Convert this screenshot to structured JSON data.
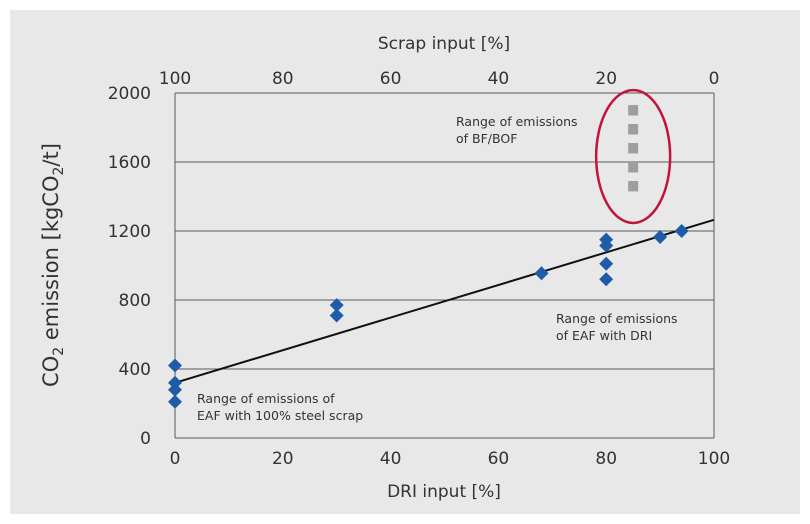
{
  "chart_data": {
    "type": "scatter",
    "top_xlabel": "Scrap input [%]",
    "xlabel": "DRI input [%]",
    "ylabel": "CO2 emission [kgCO2/t]",
    "ylabel_parts": {
      "pre": "CO",
      "sub1": "2",
      "mid": " emission [kgCO",
      "sub2": "2",
      "post": "/t]"
    },
    "xlim": [
      0,
      100
    ],
    "ylim": [
      0,
      2000
    ],
    "x_ticks": [
      "0",
      "20",
      "40",
      "60",
      "80",
      "100"
    ],
    "top_ticks": [
      "100",
      "80",
      "60",
      "40",
      "20",
      "0"
    ],
    "y_ticks": [
      "0",
      "400",
      "800",
      "1200",
      "1600",
      "2000"
    ],
    "grid": "horizontal",
    "marker_color": "#1f5ca8",
    "trend_color": "#111111",
    "bf_color": "#9e9e9e",
    "ellipse_color": "#c0143c",
    "series": [
      {
        "values": [
          {
            "x": 0,
            "y": 420
          },
          {
            "x": 0,
            "y": 320
          },
          {
            "x": 0,
            "y": 280
          },
          {
            "x": 0,
            "y": 210
          },
          {
            "x": 30,
            "y": 770
          },
          {
            "x": 30,
            "y": 710
          },
          {
            "x": 68,
            "y": 955
          },
          {
            "x": 80,
            "y": 1150
          },
          {
            "x": 80,
            "y": 1115
          },
          {
            "x": 80,
            "y": 1010
          },
          {
            "x": 80,
            "y": 920
          },
          {
            "x": 90,
            "y": 1165
          },
          {
            "x": 94,
            "y": 1200
          }
        ]
      }
    ],
    "trendline": {
      "x": [
        0,
        100
      ],
      "y": [
        320,
        1265
      ]
    },
    "bf_bof_range": {
      "x": 85,
      "y": [
        1380,
        1930
      ]
    },
    "annotations": [
      {
        "lines": [
          "Range of emissions",
          "of BF/BOF"
        ]
      },
      {
        "lines": [
          "Range of emissions",
          "of EAF with DRI"
        ]
      },
      {
        "lines": [
          "Range of emissions of",
          "EAF with 100% steel scrap"
        ]
      }
    ]
  }
}
